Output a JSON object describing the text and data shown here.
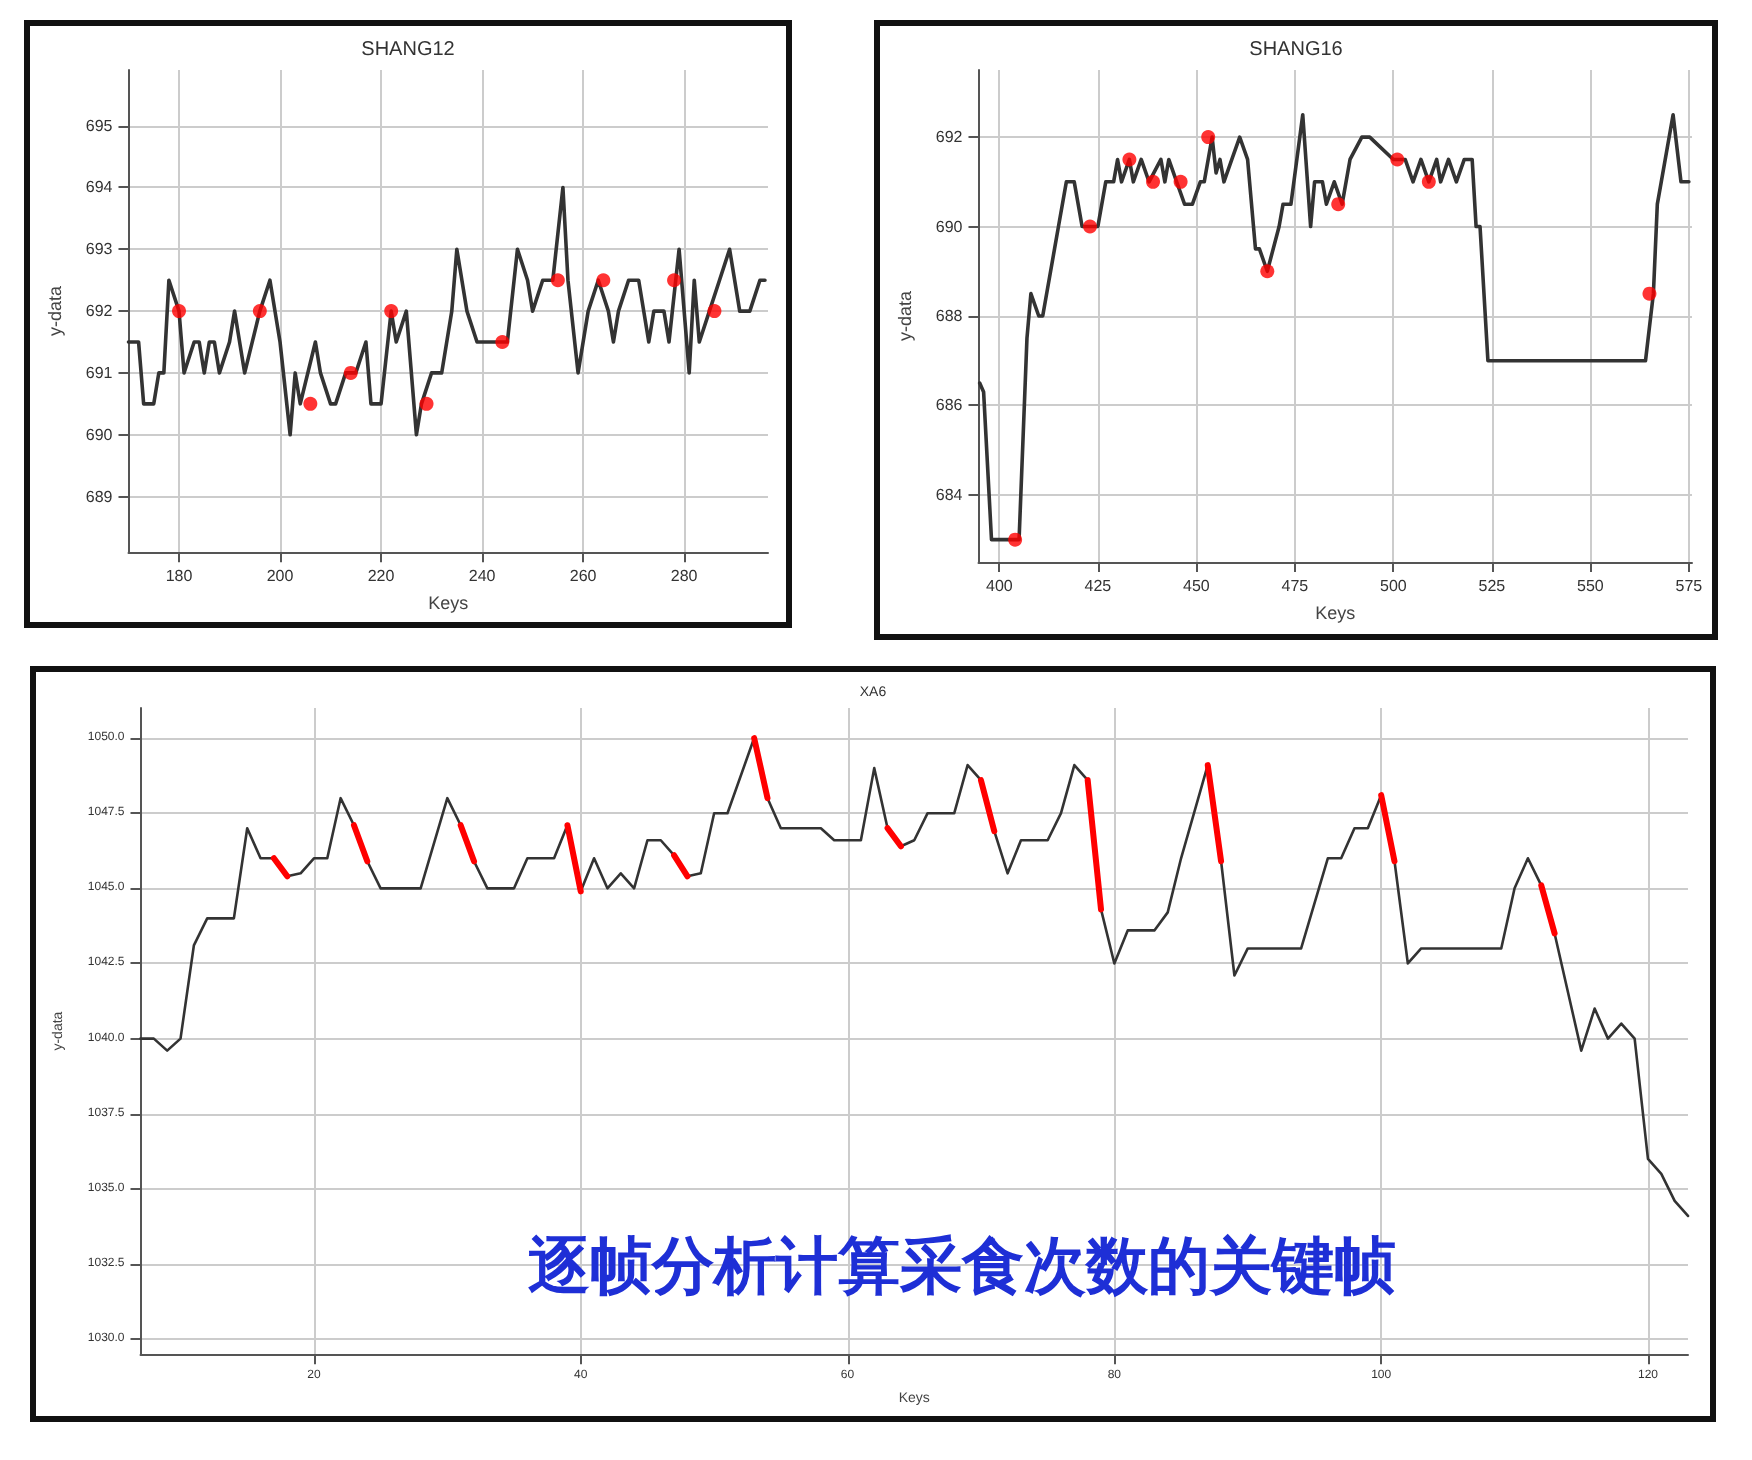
{
  "chart_data": [
    {
      "type": "line",
      "title": "SHANG12",
      "xlabel": "Keys",
      "ylabel": "y-data",
      "xlim": [
        170,
        296.6
      ],
      "xticks": [
        180,
        200,
        220,
        240,
        260,
        280
      ],
      "ylim": [
        688.1,
        695.9
      ],
      "yticks": [
        689,
        690,
        691,
        692,
        693,
        694,
        695
      ],
      "grid": true,
      "series": [
        {
          "color": "#333333",
          "marker": "none",
          "x": [
            170,
            172,
            173,
            175,
            176,
            177,
            178,
            180,
            181,
            183,
            184,
            185,
            186,
            187,
            188,
            190,
            191,
            193,
            196,
            198,
            200,
            202,
            203,
            204,
            207,
            208,
            210,
            211,
            213,
            215,
            217,
            218,
            220,
            222,
            223,
            225,
            227,
            228,
            230,
            232,
            234,
            235,
            237,
            239,
            243,
            245,
            247,
            249,
            250,
            252,
            254,
            256,
            257,
            259,
            261,
            263,
            265,
            266,
            267,
            269,
            271,
            273,
            274,
            276,
            277,
            279,
            281,
            282,
            283,
            285,
            287,
            289,
            291,
            293,
            295,
            296
          ],
          "values": [
            691.5,
            691.5,
            690.5,
            690.5,
            691,
            691,
            692.5,
            692,
            691,
            691.5,
            691.5,
            691,
            691.5,
            691.5,
            691,
            691.5,
            692,
            691,
            692,
            692.5,
            691.5,
            690,
            691,
            690.5,
            691.5,
            691,
            690.5,
            690.5,
            691,
            691,
            691.5,
            690.5,
            690.5,
            692,
            691.5,
            692,
            690,
            690.5,
            691,
            691,
            692,
            693,
            692,
            691.5,
            691.5,
            691.5,
            693,
            692.5,
            692,
            692.5,
            692.5,
            694,
            692.5,
            691,
            692,
            692.5,
            692,
            691.5,
            692,
            692.5,
            692.5,
            691.5,
            692,
            692,
            691.5,
            693,
            691,
            692.5,
            691.5,
            692,
            692.5,
            693,
            692,
            692,
            692.5,
            692.5
          ]
        },
        {
          "type": "scatter",
          "color": "#ff0000",
          "marker": "circle",
          "x": [
            180,
            196,
            206,
            214,
            222,
            229,
            244,
            255,
            264,
            278,
            286
          ],
          "values": [
            692,
            692,
            690.5,
            691,
            692,
            690.5,
            691.5,
            692.5,
            692.5,
            692.5,
            692
          ]
        }
      ]
    },
    {
      "type": "line",
      "title": "SHANG16",
      "xlabel": "Keys",
      "ylabel": "y-data",
      "xlim": [
        394.7,
        575.8
      ],
      "xticks": [
        400,
        425,
        450,
        475,
        500,
        525,
        550,
        575
      ],
      "ylim": [
        682.5,
        693.5
      ],
      "yticks": [
        684,
        686,
        688,
        690,
        692
      ],
      "grid": true,
      "series": [
        {
          "color": "#333333",
          "marker": "none",
          "x": [
            395,
            396,
            398,
            402,
            405,
            407,
            408,
            410,
            411,
            414,
            415,
            417,
            419,
            421,
            425,
            427,
            429,
            430,
            431,
            433,
            434,
            436,
            438,
            441,
            442,
            443,
            445,
            447,
            449,
            451,
            452,
            454,
            455,
            456,
            457,
            459,
            461,
            463,
            465,
            466,
            468,
            471,
            472,
            474,
            477,
            479,
            480,
            482,
            483,
            485,
            487,
            489,
            492,
            494,
            500,
            503,
            505,
            507,
            509,
            511,
            512,
            514,
            516,
            518,
            520,
            521,
            522,
            524,
            564,
            566,
            567,
            568,
            571,
            573,
            575
          ],
          "values": [
            686.5,
            686.3,
            683,
            683,
            683,
            687.5,
            688.5,
            688,
            688,
            689.5,
            690,
            691,
            691,
            690,
            690,
            691,
            691,
            691.5,
            691,
            691.5,
            691,
            691.5,
            691,
            691.5,
            691,
            691.5,
            691,
            690.5,
            690.5,
            691,
            691,
            692,
            691.2,
            691.5,
            691,
            691.5,
            692,
            691.5,
            689.5,
            689.5,
            689,
            690,
            690.5,
            690.5,
            692.5,
            690,
            691,
            691,
            690.5,
            691,
            690.5,
            691.5,
            692,
            692,
            691.5,
            691.5,
            691,
            691.5,
            691,
            691.5,
            691,
            691.5,
            691,
            691.5,
            691.5,
            690,
            690,
            687,
            687,
            688.5,
            690.5,
            691,
            692.5,
            691,
            691
          ]
        },
        {
          "type": "scatter",
          "color": "#ff0000",
          "marker": "circle",
          "x": [
            404,
            423,
            433,
            439,
            446,
            453,
            468,
            486,
            501,
            509,
            565
          ],
          "values": [
            683,
            690,
            691.5,
            691,
            691,
            692,
            689,
            690.5,
            691.5,
            691,
            688.5
          ]
        }
      ]
    },
    {
      "type": "line",
      "title": "XA6",
      "xlabel": "Keys",
      "ylabel": "y-data",
      "xlim": [
        7,
        123
      ],
      "xticks": [
        20,
        40,
        60,
        80,
        100,
        120
      ],
      "ylim": [
        1029.5,
        1051
      ],
      "yticks": [
        {
          "value": 1030,
          "label": "1030.0"
        },
        {
          "value": 1032.5,
          "label": "1032.5"
        },
        {
          "value": 1035,
          "label": "1035.0"
        },
        {
          "value": 1037.5,
          "label": "1037.5"
        },
        {
          "value": 1040,
          "label": "1040.0"
        },
        {
          "value": 1042.5,
          "label": "1042.5"
        },
        {
          "value": 1045,
          "label": "1045.0"
        },
        {
          "value": 1047.5,
          "label": "1047.5"
        },
        {
          "value": 1050,
          "label": "1050.0"
        }
      ],
      "grid": true,
      "annotations": [
        "逐帧分析计算采食次数的关键帧"
      ],
      "series": [
        {
          "color": "#333333",
          "marker": "none",
          "x": [
            7,
            8,
            9,
            10,
            11,
            12,
            14,
            15,
            16,
            17,
            18,
            19,
            20,
            21,
            22,
            23,
            24,
            25,
            28,
            30,
            31,
            32,
            33,
            35,
            36,
            38,
            39,
            40,
            41,
            42,
            43,
            44,
            45,
            46,
            47,
            48,
            49,
            50,
            51,
            53,
            54,
            55,
            58,
            59,
            61,
            62,
            63,
            64,
            65,
            66,
            68,
            69,
            70,
            71,
            72,
            73,
            75,
            76,
            77,
            78,
            79,
            80,
            81,
            83,
            84,
            85,
            87,
            88,
            89,
            90,
            94,
            96,
            97,
            98,
            99,
            100,
            101,
            102,
            103,
            109,
            110,
            111,
            112,
            113,
            115,
            116,
            117,
            118,
            119,
            120,
            121,
            122,
            123
          ],
          "values": [
            1040,
            1040,
            1039.6,
            1040,
            1043.1,
            1044,
            1044,
            1047,
            1046,
            1046,
            1045.4,
            1045.5,
            1046,
            1046,
            1048,
            1047.1,
            1045.9,
            1045,
            1045,
            1048,
            1047.1,
            1045.9,
            1045,
            1045,
            1046,
            1046,
            1047.1,
            1044.9,
            1046,
            1045,
            1045.5,
            1045,
            1046.6,
            1046.6,
            1046.1,
            1045.4,
            1045.5,
            1047.5,
            1047.5,
            1050,
            1048,
            1047,
            1047,
            1046.6,
            1046.6,
            1049,
            1047,
            1046.4,
            1046.6,
            1047.5,
            1047.5,
            1049.1,
            1048.6,
            1046.9,
            1045.5,
            1046.6,
            1046.6,
            1047.5,
            1049.1,
            1048.6,
            1044.3,
            1042.5,
            1043.6,
            1043.6,
            1044.2,
            1046,
            1049.1,
            1045.9,
            1042.1,
            1043,
            1043,
            1046,
            1046,
            1047,
            1047,
            1048.1,
            1045.9,
            1042.5,
            1043,
            1043,
            1045,
            1046,
            1045.1,
            1043.5,
            1039.6,
            1041,
            1040,
            1040.5,
            1040,
            1036,
            1035.5,
            1034.6,
            1034.1
          ]
        },
        {
          "color": "#ff0000",
          "marker": "none",
          "x": [
            17,
            18,
            19,
            23,
            24,
            25,
            31,
            32,
            33,
            39,
            40,
            41,
            47,
            48,
            49,
            53,
            54,
            55,
            63,
            64,
            65,
            70,
            71,
            72,
            78,
            79,
            80,
            87,
            88,
            89,
            100,
            101,
            102,
            112,
            113
          ],
          "values": [
            1046,
            1045.4,
            null,
            1047.1,
            1045.9,
            null,
            1047.1,
            1045.9,
            null,
            1047.1,
            1044.9,
            null,
            1046.1,
            1045.4,
            null,
            1050,
            1048,
            null,
            1047,
            1046.4,
            null,
            1048.6,
            1046.9,
            null,
            1048.6,
            1044.3,
            null,
            1049.1,
            1045.9,
            null,
            1048.1,
            1045.9,
            null,
            1045.1,
            1043.5
          ]
        }
      ]
    }
  ]
}
